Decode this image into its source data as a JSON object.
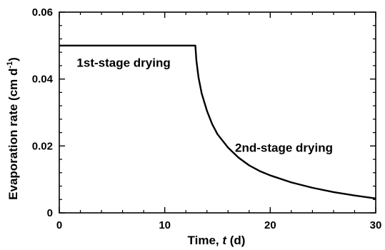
{
  "chart_data": {
    "type": "line",
    "title": "",
    "xlabel": "Time, ",
    "xlabel_var": "t",
    "xlabel_unit": " (d)",
    "ylabel": "Evaporation rate (cm d",
    "ylabel_sup": "-1",
    "ylabel_close": ")",
    "xlim": [
      0,
      30
    ],
    "ylim": [
      0,
      0.06
    ],
    "xticks": [
      0,
      10,
      20,
      30
    ],
    "xtick_labels": [
      "0",
      "10",
      "20",
      "30"
    ],
    "yticks": [
      0,
      0.02,
      0.04,
      0.06
    ],
    "ytick_labels": [
      "0",
      "0.02",
      "0.04",
      "0.06"
    ],
    "grid": false,
    "series": [
      {
        "x": [
          0,
          12.9,
          12.9,
          13.0,
          13.2,
          13.5,
          14.0,
          14.5,
          15.0,
          16.0,
          17.0,
          18.0,
          19.0,
          20.0,
          22.0,
          24.0,
          26.0,
          28.0,
          30.0
        ],
        "y": [
          0.05,
          0.05,
          0.05,
          0.0455,
          0.0405,
          0.0357,
          0.0305,
          0.0265,
          0.0235,
          0.0195,
          0.0165,
          0.0142,
          0.0125,
          0.0112,
          0.0091,
          0.0075,
          0.0062,
          0.0052,
          0.0043
        ]
      }
    ],
    "annotations": [
      {
        "text": "1st-stage drying",
        "x": 6.1,
        "y": 0.045
      },
      {
        "text": "2nd-stage drying",
        "x": 21.3,
        "y": 0.0195
      }
    ]
  }
}
